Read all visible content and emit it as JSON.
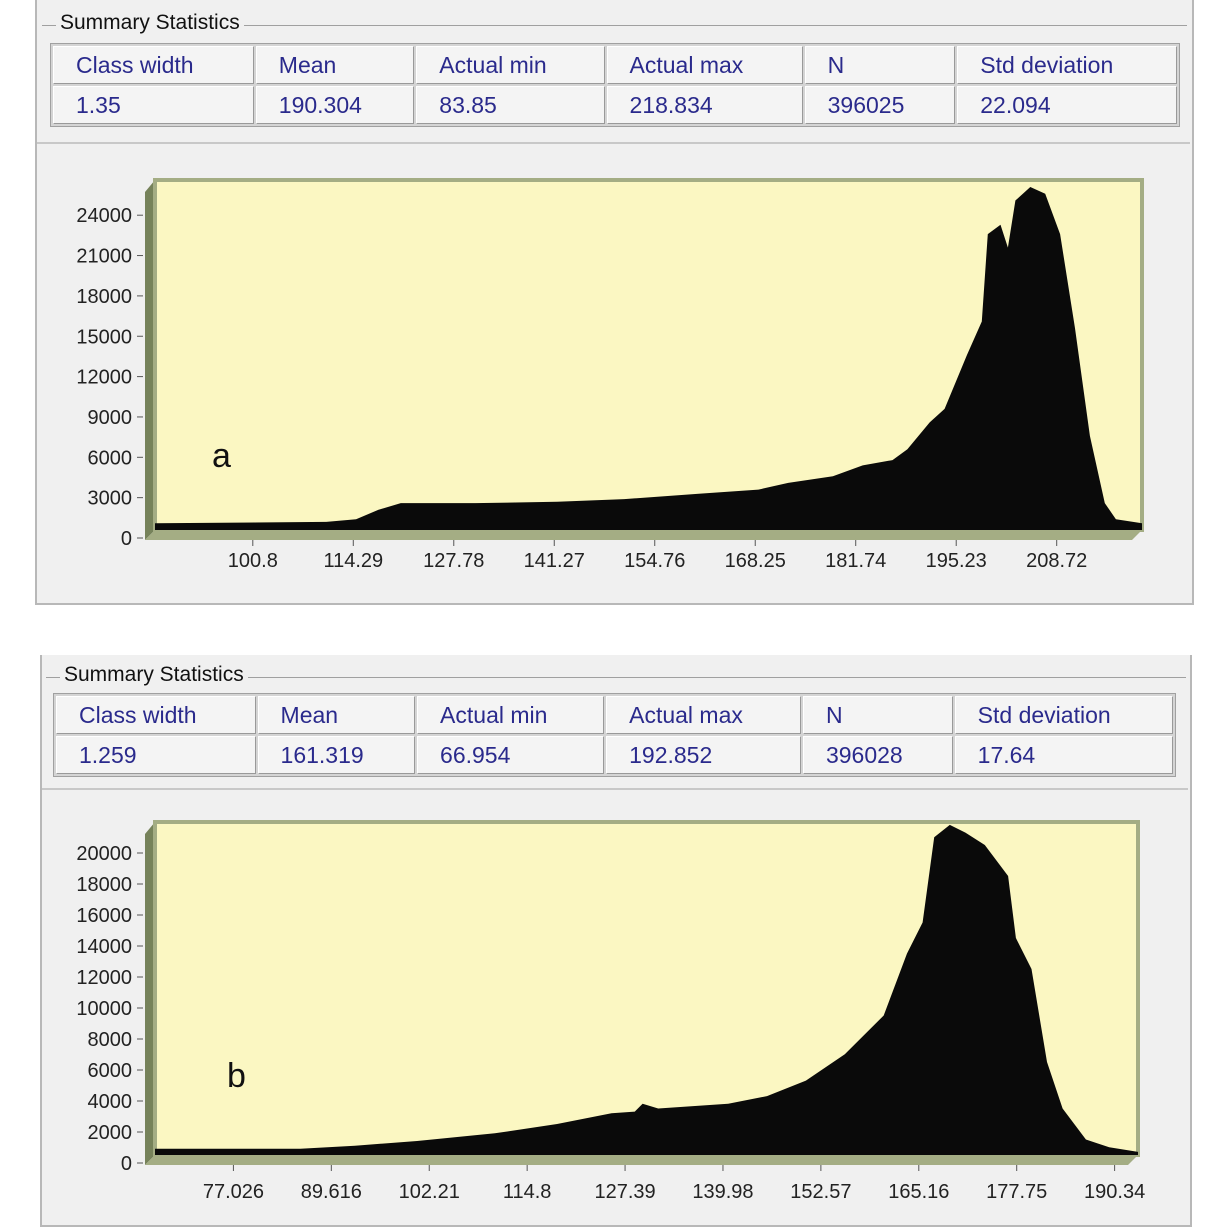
{
  "panels": [
    {
      "group_title": "Summary Statistics",
      "headers": [
        "Class width",
        "Mean",
        "Actual min",
        "Actual max",
        "N",
        "Std deviation"
      ],
      "values": [
        "1.35",
        "190.304",
        "83.85",
        "218.834",
        "396025",
        "22.094"
      ]
    },
    {
      "group_title": "Summary Statistics",
      "headers": [
        "Class width",
        "Mean",
        "Actual min",
        "Actual max",
        "N",
        "Std deviation"
      ],
      "values": [
        "1.259",
        "161.319",
        "66.954",
        "192.852",
        "396028",
        "17.64"
      ]
    }
  ],
  "colors": {
    "wall": "#fbf7c2",
    "frame": "#a4ad84",
    "side": "#76825a",
    "fill": "#0a0a0a",
    "header_text": "#2a2a8c"
  },
  "chart_data": [
    {
      "type": "area",
      "label": "a",
      "xlim": [
        87,
        219.5
      ],
      "yticks": [
        "0",
        "3000",
        "6000",
        "9000",
        "12000",
        "15000",
        "18000",
        "21000",
        "24000"
      ],
      "xticks": [
        "100.8",
        "114.29",
        "127.78",
        "141.27",
        "154.76",
        "168.25",
        "181.74",
        "195.23",
        "208.72"
      ],
      "points": [
        [
          87,
          500
        ],
        [
          110,
          600
        ],
        [
          114,
          800
        ],
        [
          117,
          1500
        ],
        [
          120,
          2000
        ],
        [
          130,
          2000
        ],
        [
          141,
          2100
        ],
        [
          150,
          2300
        ],
        [
          160,
          2700
        ],
        [
          168,
          3000
        ],
        [
          172,
          3500
        ],
        [
          178,
          4000
        ],
        [
          182,
          4800
        ],
        [
          186,
          5200
        ],
        [
          188,
          6000
        ],
        [
          191,
          8000
        ],
        [
          193,
          9000
        ],
        [
          196,
          13000
        ],
        [
          198,
          15500
        ],
        [
          198.8,
          22000
        ],
        [
          200.5,
          22700
        ],
        [
          201.5,
          21000
        ],
        [
          202.5,
          24500
        ],
        [
          204.5,
          25500
        ],
        [
          206.5,
          25000
        ],
        [
          208.5,
          22000
        ],
        [
          210.5,
          15000
        ],
        [
          212.5,
          7000
        ],
        [
          214.5,
          2000
        ],
        [
          216,
          800
        ],
        [
          219.5,
          500
        ]
      ]
    },
    {
      "type": "area",
      "label": "b",
      "xlim": [
        66.3,
        192.7
      ],
      "yticks": [
        "0",
        "2000",
        "4000",
        "6000",
        "8000",
        "10000",
        "12000",
        "14000",
        "16000",
        "18000",
        "20000"
      ],
      "xticks": [
        "77.026",
        "89.616",
        "102.21",
        "114.8",
        "127.39",
        "139.98",
        "152.57",
        "165.16",
        "177.75",
        "190.34"
      ],
      "points": [
        [
          66.3,
          400
        ],
        [
          85,
          400
        ],
        [
          92,
          600
        ],
        [
          100,
          900
        ],
        [
          110,
          1400
        ],
        [
          118,
          2000
        ],
        [
          125,
          2700
        ],
        [
          128,
          2800
        ],
        [
          129,
          3300
        ],
        [
          131,
          3000
        ],
        [
          140,
          3300
        ],
        [
          145,
          3800
        ],
        [
          150,
          4800
        ],
        [
          155,
          6500
        ],
        [
          160,
          9000
        ],
        [
          163,
          13000
        ],
        [
          165,
          15000
        ],
        [
          166.5,
          20500
        ],
        [
          168.5,
          21300
        ],
        [
          170.5,
          20800
        ],
        [
          173,
          20000
        ],
        [
          176,
          18000
        ],
        [
          177,
          14000
        ],
        [
          179,
          12000
        ],
        [
          181,
          6000
        ],
        [
          183,
          3000
        ],
        [
          186,
          1000
        ],
        [
          189,
          500
        ],
        [
          192.7,
          200
        ]
      ]
    }
  ]
}
